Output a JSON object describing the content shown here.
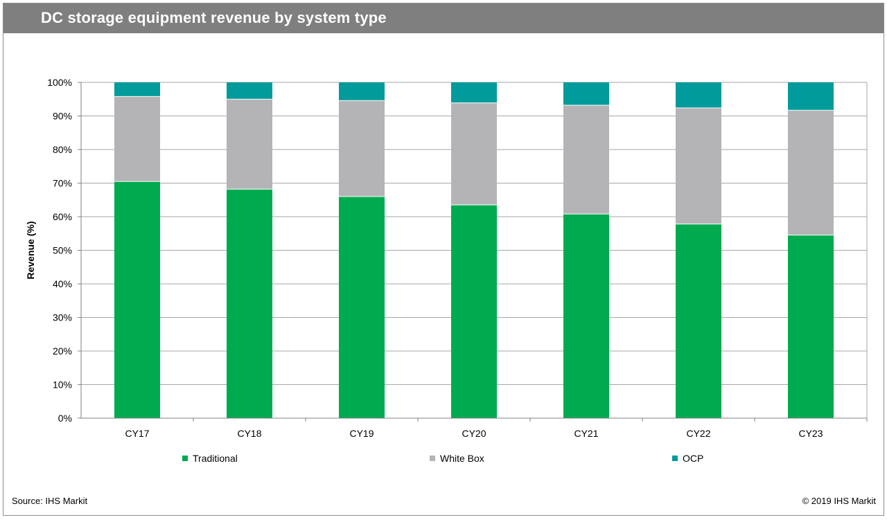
{
  "header": {
    "title": "DC storage equipment revenue by system type"
  },
  "footer": {
    "source": "Source:  IHS Markit",
    "copyright": "© 2019 IHS Markit"
  },
  "colors": {
    "traditional": "#00aa4f",
    "white_box": "#b4b4b6",
    "ocp": "#009b9a",
    "title_bar": "#7f7f7f",
    "grid": "#a6a6a6"
  },
  "chart_data": {
    "type": "bar",
    "stacked": true,
    "title": "",
    "xlabel": "",
    "ylabel": "Revenue (%)",
    "ylim": [
      0,
      100
    ],
    "yticks": [
      0,
      10,
      20,
      30,
      40,
      50,
      60,
      70,
      80,
      90,
      100
    ],
    "ytick_labels": [
      "0%",
      "10%",
      "20%",
      "30%",
      "40%",
      "50%",
      "60%",
      "70%",
      "80%",
      "90%",
      "100%"
    ],
    "grid": true,
    "legend_position": "bottom",
    "categories": [
      "CY17",
      "CY18",
      "CY19",
      "CY20",
      "CY21",
      "CY22",
      "CY23"
    ],
    "series": [
      {
        "name": "Traditional",
        "color": "#00aa4f",
        "values": [
          70.5,
          68.2,
          66.0,
          63.5,
          60.8,
          57.8,
          54.5
        ]
      },
      {
        "name": "White Box",
        "color": "#b4b4b6",
        "values": [
          25.3,
          26.8,
          28.6,
          30.4,
          32.4,
          34.6,
          37.2
        ]
      },
      {
        "name": "OCP",
        "color": "#009b9a",
        "values": [
          4.2,
          5.0,
          5.4,
          6.1,
          6.8,
          7.6,
          8.3
        ]
      }
    ]
  }
}
